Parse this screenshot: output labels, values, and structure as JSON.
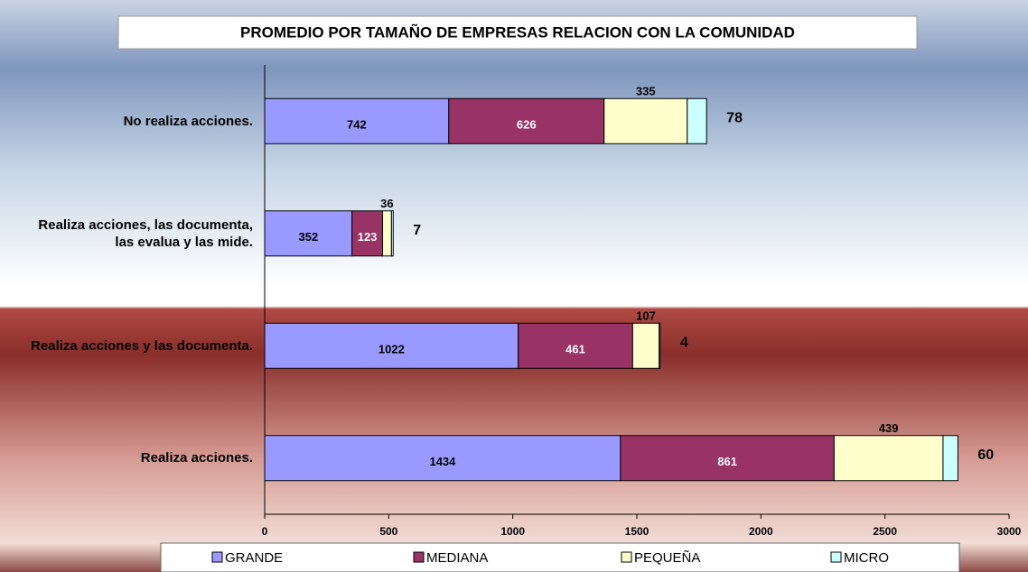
{
  "chart_data": {
    "type": "stacked-bar-horizontal",
    "title": "PROMEDIO POR TAMAÑO DE EMPRESAS  RELACION  CON LA COMUNIDAD",
    "categories": [
      "No realiza acciones.",
      "Realiza acciones, las documenta, las evalua y las mide.",
      "Realiza acciones y las documenta.",
      "Realiza acciones."
    ],
    "series": [
      {
        "name": "GRANDE",
        "color": "#9999ff",
        "values": [
          742,
          352,
          1022,
          1434
        ]
      },
      {
        "name": "MEDIANA",
        "color": "#993366",
        "values": [
          626,
          123,
          461,
          861
        ]
      },
      {
        "name": "PEQUEÑA",
        "color": "#ffffcc",
        "values": [
          335,
          36,
          107,
          439
        ]
      },
      {
        "name": "MICRO",
        "color": "#ccffff",
        "values": [
          78,
          7,
          4,
          60
        ]
      }
    ],
    "xlim": [
      0,
      3000
    ],
    "xticks": [
      0,
      500,
      1000,
      1500,
      2000,
      2500,
      3000
    ],
    "legend": "bottom"
  }
}
